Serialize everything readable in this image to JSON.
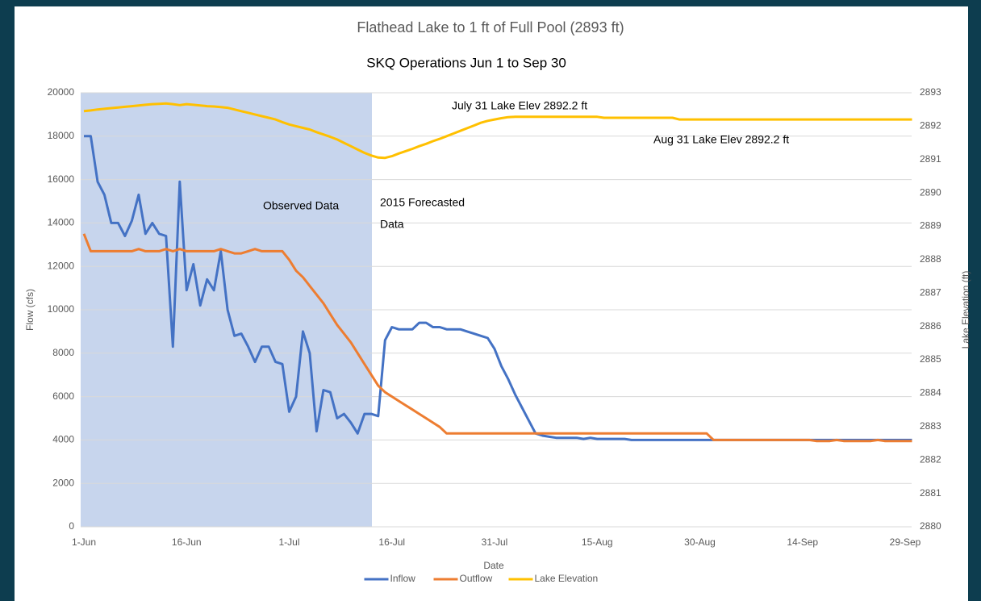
{
  "chart_data": {
    "type": "line",
    "title": "Flathead Lake to 1 ft of Full Pool (2893 ft)",
    "subtitle": "SKQ Operations Jun 1 to Sep 30",
    "x_label": "Date",
    "y_label": "Flow (cfs)",
    "y2_label": "Lake Elevation (ft)",
    "annotations": [
      "Observed Data",
      "2015 Forecasted",
      "Data",
      "July 31 Lake Elev 2892.2 ft",
      "Aug 31 Lake Elev 2892.2 ft"
    ],
    "x": [
      "1-Jun",
      "2-Jun",
      "3-Jun",
      "4-Jun",
      "5-Jun",
      "6-Jun",
      "7-Jun",
      "8-Jun",
      "9-Jun",
      "10-Jun",
      "11-Jun",
      "12-Jun",
      "13-Jun",
      "14-Jun",
      "15-Jun",
      "16-Jun",
      "17-Jun",
      "18-Jun",
      "19-Jun",
      "20-Jun",
      "21-Jun",
      "22-Jun",
      "23-Jun",
      "24-Jun",
      "25-Jun",
      "26-Jun",
      "27-Jun",
      "28-Jun",
      "29-Jun",
      "30-Jun",
      "1-Jul",
      "2-Jul",
      "3-Jul",
      "4-Jul",
      "5-Jul",
      "6-Jul",
      "7-Jul",
      "8-Jul",
      "9-Jul",
      "10-Jul",
      "11-Jul",
      "12-Jul",
      "13-Jul",
      "14-Jul",
      "15-Jul",
      "16-Jul",
      "17-Jul",
      "18-Jul",
      "19-Jul",
      "20-Jul",
      "21-Jul",
      "22-Jul",
      "23-Jul",
      "24-Jul",
      "25-Jul",
      "26-Jul",
      "27-Jul",
      "28-Jul",
      "29-Jul",
      "30-Jul",
      "31-Jul",
      "1-Aug",
      "2-Aug",
      "3-Aug",
      "4-Aug",
      "5-Aug",
      "6-Aug",
      "7-Aug",
      "8-Aug",
      "9-Aug",
      "10-Aug",
      "11-Aug",
      "12-Aug",
      "13-Aug",
      "14-Aug",
      "15-Aug",
      "16-Aug",
      "17-Aug",
      "18-Aug",
      "19-Aug",
      "20-Aug",
      "21-Aug",
      "22-Aug",
      "23-Aug",
      "24-Aug",
      "25-Aug",
      "26-Aug",
      "27-Aug",
      "28-Aug",
      "29-Aug",
      "30-Aug",
      "31-Aug",
      "1-Sep",
      "2-Sep",
      "3-Sep",
      "4-Sep",
      "5-Sep",
      "6-Sep",
      "7-Sep",
      "8-Sep",
      "9-Sep",
      "10-Sep",
      "11-Sep",
      "12-Sep",
      "13-Sep",
      "14-Sep",
      "15-Sep",
      "16-Sep",
      "17-Sep",
      "18-Sep",
      "19-Sep",
      "20-Sep",
      "21-Sep",
      "22-Sep",
      "23-Sep",
      "24-Sep",
      "25-Sep",
      "26-Sep",
      "27-Sep",
      "28-Sep",
      "29-Sep",
      "30-Sep"
    ],
    "xticks": [
      "1-Jun",
      "16-Jun",
      "1-Jul",
      "16-Jul",
      "31-Jul",
      "15-Aug",
      "30-Aug",
      "14-Sep",
      "29-Sep"
    ],
    "ylim": [
      0,
      20000
    ],
    "yticks": [
      0,
      2000,
      4000,
      6000,
      8000,
      10000,
      12000,
      14000,
      16000,
      18000,
      20000
    ],
    "y2lim": [
      2880,
      2893
    ],
    "y2ticks": [
      2880,
      2881,
      2882,
      2883,
      2884,
      2885,
      2886,
      2887,
      2888,
      2889,
      2890,
      2891,
      2892,
      2893
    ],
    "grid": true,
    "legend": "bottom",
    "series": [
      {
        "name": "Inflow",
        "color": "#4472c4",
        "values": [
          18000,
          18000,
          15900,
          15300,
          14000,
          14000,
          13400,
          14100,
          15300,
          13500,
          14000,
          13500,
          13400,
          8300,
          15900,
          10900,
          12100,
          10200,
          11400,
          10900,
          12700,
          10000,
          8800,
          8900,
          8300,
          7600,
          8300,
          8300,
          7600,
          7500,
          5300,
          6000,
          9000,
          8000,
          4400,
          6300,
          6200,
          5000,
          5200,
          4800,
          4300,
          5200,
          5200,
          5100,
          8600,
          9200,
          9100,
          9100,
          9100,
          9400,
          9400,
          9200,
          9200,
          9100,
          9100,
          9100,
          9000,
          8900,
          8800,
          8700,
          8200,
          7400,
          6800,
          6100,
          5500,
          4900,
          4300,
          4200,
          4150,
          4100,
          4100,
          4100,
          4100,
          4050,
          4100,
          4050,
          4050,
          4050,
          4050,
          4050,
          4000,
          4000,
          4000,
          4000,
          4000,
          4000,
          4000,
          4000,
          4000,
          4000,
          4000,
          4000,
          4000,
          4000,
          4000,
          4000,
          4000,
          4000,
          4000,
          4000,
          4000,
          4000,
          4000,
          4000,
          4000,
          4000,
          4000,
          4000,
          4000,
          4000,
          4000,
          4000,
          4000,
          4000,
          4000,
          4000,
          4000,
          4000,
          4000,
          4000,
          4000,
          4000
        ]
      },
      {
        "name": "Outflow",
        "color": "#ed7d31",
        "values": [
          13500,
          12700,
          12700,
          12700,
          12700,
          12700,
          12700,
          12700,
          12800,
          12700,
          12700,
          12700,
          12800,
          12700,
          12800,
          12700,
          12700,
          12700,
          12700,
          12700,
          12800,
          12700,
          12600,
          12600,
          12700,
          12800,
          12700,
          12700,
          12700,
          12700,
          12300,
          11800,
          11500,
          11100,
          10700,
          10300,
          9800,
          9300,
          8900,
          8500,
          8000,
          7500,
          7000,
          6500,
          6200,
          6000,
          5800,
          5600,
          5400,
          5200,
          5000,
          4800,
          4600,
          4300,
          4300,
          4300,
          4300,
          4300,
          4300,
          4300,
          4300,
          4300,
          4300,
          4300,
          4300,
          4300,
          4300,
          4300,
          4300,
          4300,
          4300,
          4300,
          4300,
          4300,
          4300,
          4300,
          4300,
          4300,
          4300,
          4300,
          4300,
          4300,
          4300,
          4300,
          4300,
          4300,
          4300,
          4300,
          4300,
          4300,
          4300,
          4300,
          4000,
          4000,
          4000,
          4000,
          4000,
          4000,
          4000,
          4000,
          4000,
          4000,
          4000,
          4000,
          4000,
          4000,
          4000,
          3950,
          3950,
          3950,
          4000,
          3950,
          3950,
          3950,
          3950,
          3950,
          4000,
          3950,
          3950,
          3950,
          3950,
          3950
        ]
      },
      {
        "name": "Lake Elevation",
        "color": "#ffc000",
        "axis": "y2",
        "values": [
          2892.45,
          2892.47,
          2892.5,
          2892.52,
          2892.54,
          2892.56,
          2892.58,
          2892.6,
          2892.62,
          2892.64,
          2892.66,
          2892.67,
          2892.68,
          2892.66,
          2892.63,
          2892.66,
          2892.64,
          2892.62,
          2892.6,
          2892.59,
          2892.57,
          2892.55,
          2892.5,
          2892.45,
          2892.4,
          2892.35,
          2892.3,
          2892.25,
          2892.2,
          2892.12,
          2892.05,
          2892.0,
          2891.95,
          2891.9,
          2891.82,
          2891.75,
          2891.68,
          2891.6,
          2891.5,
          2891.4,
          2891.3,
          2891.2,
          2891.12,
          2891.06,
          2891.05,
          2891.1,
          2891.18,
          2891.25,
          2891.32,
          2891.4,
          2891.47,
          2891.55,
          2891.62,
          2891.7,
          2891.78,
          2891.86,
          2891.94,
          2892.02,
          2892.1,
          2892.16,
          2892.2,
          2892.24,
          2892.27,
          2892.28,
          2892.28,
          2892.28,
          2892.28,
          2892.28,
          2892.28,
          2892.28,
          2892.28,
          2892.28,
          2892.28,
          2892.28,
          2892.28,
          2892.28,
          2892.25,
          2892.25,
          2892.25,
          2892.25,
          2892.25,
          2892.25,
          2892.25,
          2892.25,
          2892.25,
          2892.25,
          2892.25,
          2892.2,
          2892.2,
          2892.2,
          2892.2,
          2892.2,
          2892.2,
          2892.2,
          2892.2,
          2892.2,
          2892.2,
          2892.2,
          2892.2,
          2892.2,
          2892.2,
          2892.2,
          2892.2,
          2892.2,
          2892.2,
          2892.2,
          2892.2,
          2892.2,
          2892.2,
          2892.2,
          2892.2,
          2892.2,
          2892.2,
          2892.2,
          2892.2,
          2892.2,
          2892.2,
          2892.2,
          2892.2,
          2892.2,
          2892.2,
          2892.2
        ]
      }
    ]
  }
}
